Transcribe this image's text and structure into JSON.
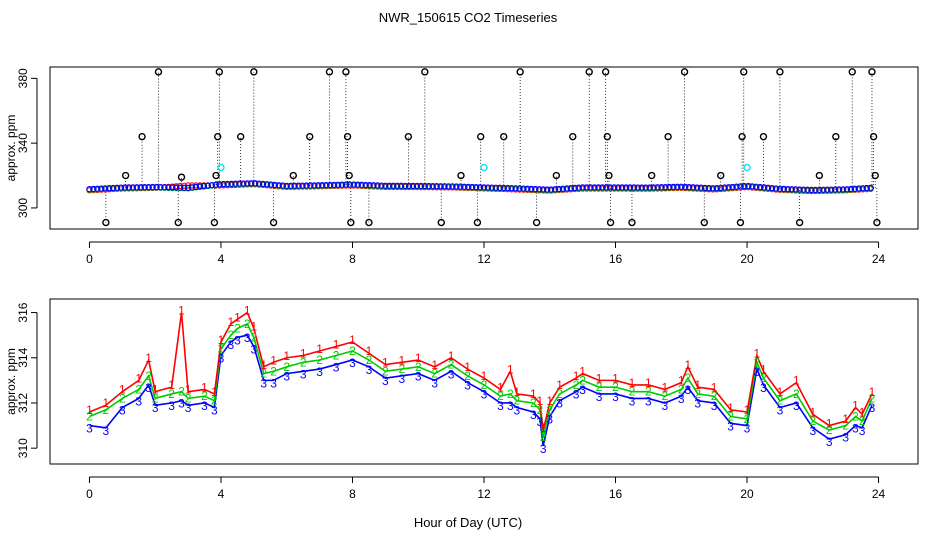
{
  "figure": {
    "title": "NWR_150615  CO2 Timeseries",
    "xlabel": "Hour of Day (UTC)"
  },
  "colors": {
    "series1": "#ff0000",
    "series2": "#00cc00",
    "series3": "#0000ff",
    "flagged": "#000000",
    "cyan": "#00e5ee",
    "axis": "#000000"
  },
  "chart_data": [
    {
      "type": "scatter",
      "name": "top-panel",
      "ylabel": "approx. ppm",
      "xlim": [
        -1.2,
        25.2
      ],
      "ylim": [
        287,
        387
      ],
      "xticks": [
        0,
        4,
        8,
        12,
        16,
        20,
        24
      ],
      "yticks": [
        300,
        340,
        380
      ],
      "baseline_series": [
        {
          "name": "1",
          "color": "#ff0000",
          "marker": "circle",
          "x": [
            0,
            1,
            2,
            3,
            4,
            5,
            6,
            7,
            8,
            9,
            10,
            11,
            12,
            13,
            14,
            15,
            16,
            17,
            18,
            19,
            20,
            21,
            22,
            23,
            23.8
          ],
          "y": [
            311.5,
            312.6,
            313.0,
            314.5,
            314.5,
            315.3,
            313.6,
            314.0,
            314.5,
            313.6,
            313.5,
            313.3,
            312.7,
            312.0,
            311.3,
            312.6,
            312.6,
            312.5,
            313.0,
            312.0,
            313.5,
            311.8,
            311.0,
            311.5,
            312.4
          ]
        },
        {
          "name": "2",
          "color": "#00cc00",
          "marker": "circle",
          "x": [
            0,
            1,
            2,
            3,
            4,
            5,
            6,
            7,
            8,
            9,
            10,
            11,
            12,
            13,
            14,
            15,
            16,
            17,
            18,
            19,
            20,
            21,
            22,
            23,
            23.8
          ],
          "y": [
            311.3,
            312.3,
            312.6,
            312.1,
            314.5,
            315.0,
            313.3,
            313.7,
            314.2,
            313.4,
            313.3,
            313.0,
            312.4,
            311.8,
            311.0,
            312.4,
            312.4,
            312.3,
            312.8,
            311.8,
            313.3,
            311.5,
            310.8,
            311.2,
            312.2
          ]
        },
        {
          "name": "3",
          "color": "#0000ff",
          "marker": "circle",
          "x": [
            0,
            1,
            2,
            3,
            4,
            5,
            6,
            7,
            8,
            9,
            10,
            11,
            12,
            13,
            14,
            15,
            16,
            17,
            18,
            19,
            20,
            21,
            22,
            23,
            23.8
          ],
          "y": [
            311.0,
            312.0,
            312.3,
            311.8,
            314.1,
            314.7,
            313.0,
            313.4,
            313.9,
            313.1,
            313.0,
            312.7,
            312.1,
            311.5,
            310.7,
            312.1,
            312.1,
            312.0,
            312.5,
            311.5,
            313.0,
            311.2,
            310.5,
            310.9,
            311.9
          ]
        }
      ],
      "flagged_points": {
        "color": "#000000",
        "x": [
          0.5,
          1.1,
          1.6,
          2.1,
          2.7,
          2.8,
          3.8,
          3.85,
          3.9,
          3.95,
          4.6,
          5.0,
          5.6,
          6.2,
          6.7,
          7.3,
          7.8,
          7.85,
          7.9,
          7.95,
          8.5,
          9.7,
          10.2,
          10.7,
          11.3,
          11.8,
          11.9,
          12.6,
          13.1,
          13.6,
          14.2,
          14.7,
          15.2,
          15.7,
          15.75,
          15.8,
          15.85,
          16.5,
          17.1,
          17.6,
          18.1,
          18.7,
          19.2,
          19.8,
          19.85,
          19.9,
          20.5,
          21.0,
          21.6,
          22.2,
          22.7,
          23.2,
          23.8,
          23.85,
          23.9,
          23.95
        ],
        "y": [
          291,
          320,
          344,
          384,
          291,
          319,
          291,
          320,
          344,
          384,
          344,
          384,
          291,
          320,
          344,
          384,
          384,
          344,
          320,
          291,
          291,
          344,
          384,
          291,
          320,
          291,
          344,
          344,
          384,
          291,
          320,
          344,
          384,
          384,
          344,
          320,
          291,
          291,
          320,
          344,
          384,
          291,
          320,
          291,
          344,
          384,
          344,
          384,
          291,
          320,
          344,
          384,
          384,
          344,
          320,
          291
        ]
      },
      "cyan_points": {
        "color": "#00e5ee",
        "x": [
          4.0,
          12.0,
          20.0
        ],
        "y": [
          325,
          325,
          325
        ]
      }
    },
    {
      "type": "line",
      "name": "bottom-panel",
      "ylabel": "approx. ppm",
      "xlim": [
        -1.2,
        25.2
      ],
      "ylim": [
        309.3,
        316.6
      ],
      "xticks": [
        0,
        4,
        8,
        12,
        16,
        20,
        24
      ],
      "yticks": [
        310,
        312,
        314,
        316
      ],
      "x": [
        0,
        0.5,
        1,
        1.5,
        1.8,
        2.0,
        2.5,
        2.8,
        3.0,
        3.5,
        3.8,
        4.0,
        4.3,
        4.5,
        4.8,
        5.0,
        5.3,
        5.6,
        6.0,
        6.5,
        7.0,
        7.5,
        8.0,
        8.5,
        9.0,
        9.5,
        10.0,
        10.5,
        11.0,
        11.5,
        12.0,
        12.5,
        12.8,
        13.0,
        13.5,
        13.7,
        13.8,
        14.0,
        14.3,
        14.8,
        15.0,
        15.5,
        16.0,
        16.5,
        17.0,
        17.5,
        18.0,
        18.2,
        18.5,
        19.0,
        19.5,
        20.0,
        20.3,
        20.5,
        21.0,
        21.5,
        22.0,
        22.5,
        23.0,
        23.3,
        23.5,
        23.8
      ],
      "series": [
        {
          "name": "1",
          "color": "#ff0000",
          "values": [
            311.6,
            311.9,
            312.5,
            313.0,
            313.9,
            312.5,
            312.7,
            316.0,
            312.5,
            312.6,
            312.4,
            314.7,
            315.5,
            315.7,
            316.0,
            315.3,
            313.6,
            313.8,
            314.0,
            314.1,
            314.3,
            314.5,
            314.7,
            314.2,
            313.7,
            313.8,
            313.9,
            313.6,
            314.0,
            313.5,
            313.1,
            312.6,
            313.4,
            312.4,
            312.3,
            312.0,
            310.8,
            312.0,
            312.7,
            313.1,
            313.3,
            313.0,
            313.0,
            312.8,
            312.8,
            312.6,
            312.9,
            313.6,
            312.7,
            312.6,
            311.7,
            311.6,
            314.1,
            313.4,
            312.4,
            312.9,
            311.5,
            311.0,
            311.2,
            311.8,
            311.5,
            312.4
          ]
        },
        {
          "name": "2",
          "color": "#00cc00",
          "values": [
            311.4,
            311.7,
            312.2,
            312.6,
            313.2,
            312.2,
            312.4,
            312.5,
            312.2,
            312.3,
            312.1,
            314.4,
            315.0,
            315.3,
            315.5,
            314.9,
            313.3,
            313.4,
            313.6,
            313.8,
            313.9,
            314.1,
            314.3,
            313.9,
            313.4,
            313.5,
            313.6,
            313.3,
            313.7,
            313.2,
            312.8,
            312.3,
            312.4,
            312.1,
            312.0,
            311.7,
            310.5,
            311.7,
            312.4,
            312.8,
            313.0,
            312.7,
            312.7,
            312.5,
            312.5,
            312.3,
            312.6,
            313.1,
            312.4,
            312.3,
            311.4,
            311.3,
            313.8,
            313.1,
            312.1,
            312.4,
            311.2,
            310.8,
            311.0,
            311.4,
            311.2,
            312.2
          ]
        },
        {
          "name": "3",
          "color": "#0000ff",
          "values": [
            311.0,
            310.9,
            311.8,
            312.2,
            312.8,
            311.9,
            312.0,
            312.1,
            311.9,
            312.0,
            311.8,
            314.1,
            314.7,
            314.9,
            315.0,
            314.5,
            313.0,
            313.0,
            313.3,
            313.4,
            313.5,
            313.7,
            313.9,
            313.6,
            313.1,
            313.2,
            313.3,
            313.0,
            313.4,
            312.9,
            312.5,
            312.0,
            312.0,
            311.8,
            311.6,
            311.3,
            310.1,
            311.4,
            312.1,
            312.5,
            312.7,
            312.4,
            312.4,
            312.2,
            312.2,
            312.0,
            312.3,
            312.7,
            312.1,
            312.0,
            311.1,
            311.0,
            313.5,
            312.8,
            311.8,
            312.0,
            310.9,
            310.4,
            310.6,
            311.0,
            310.9,
            311.9
          ]
        }
      ]
    }
  ]
}
